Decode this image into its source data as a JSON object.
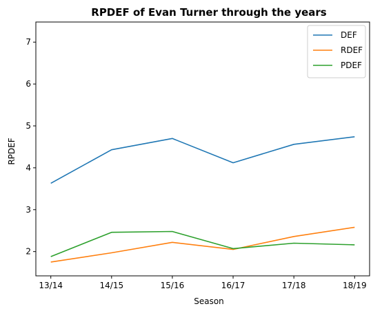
{
  "chart_data": {
    "type": "line",
    "title": "RPDEF of Evan Turner through the years",
    "xlabel": "Season",
    "ylabel": "RPDEF",
    "categories": [
      "13/14",
      "14/15",
      "15/16",
      "16/17",
      "17/18",
      "18/19"
    ],
    "yticks": [
      "2",
      "3",
      "4",
      "5",
      "6",
      "7"
    ],
    "ylim": [
      1.42,
      7.48
    ],
    "grid": false,
    "legend_position": "top-right",
    "series": [
      {
        "name": "DEF",
        "color": "#1f77b4",
        "values": [
          3.63,
          4.43,
          4.7,
          4.12,
          4.56,
          4.74
        ]
      },
      {
        "name": "RDEF",
        "color": "#ff7f0e",
        "values": [
          1.75,
          1.97,
          2.22,
          2.05,
          2.36,
          2.58
        ]
      },
      {
        "name": "PDEF",
        "color": "#2ca02c",
        "values": [
          1.88,
          2.46,
          2.48,
          2.07,
          2.2,
          2.16
        ]
      }
    ]
  }
}
